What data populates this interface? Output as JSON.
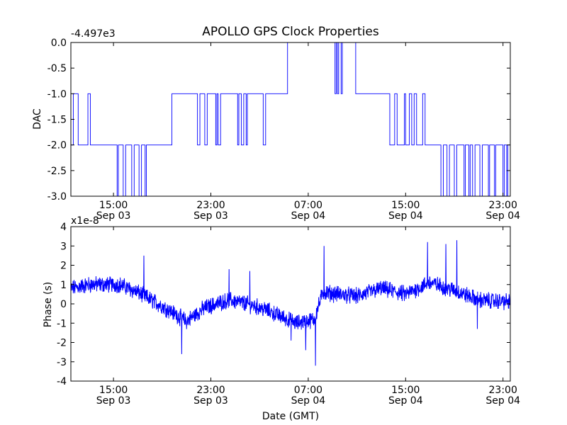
{
  "chart_data": {
    "title": "APOLLO GPS Clock Properties",
    "xlabel": "Date (GMT)",
    "x_tick_labels": [
      {
        "time": "15:00",
        "date": "Sep 03"
      },
      {
        "time": "23:00",
        "date": "Sep 03"
      },
      {
        "time": "07:00",
        "date": "Sep 04"
      },
      {
        "time": "15:00",
        "date": "Sep 04"
      },
      {
        "time": "23:00",
        "date": "Sep 04"
      }
    ],
    "x_tick_hours": [
      15,
      23,
      31,
      39,
      47
    ],
    "xlim_hours": [
      11.5,
      47.6
    ],
    "panels": [
      {
        "type": "line",
        "ylabel": "DAC",
        "offset_label": "-4.497e3",
        "ylim": [
          -3.0,
          0.0
        ],
        "y_tick_labels": [
          "0.0",
          "-0.5",
          "-1.0",
          "-1.5",
          "-2.0",
          "-2.5",
          "-3.0"
        ],
        "y_ticks": [
          0.0,
          -0.5,
          -1.0,
          -1.5,
          -2.0,
          -2.5,
          -3.0
        ],
        "color": "#0000ff",
        "segments": [
          {
            "t": 11.5,
            "v": -2
          },
          {
            "t": 11.7,
            "v": -1
          },
          {
            "t": 12.1,
            "v": -2
          },
          {
            "t": 12.9,
            "v": -1
          },
          {
            "t": 13.1,
            "v": -2
          },
          {
            "t": 15.3,
            "v": -3
          },
          {
            "t": 15.4,
            "v": -2
          },
          {
            "t": 15.8,
            "v": -3
          },
          {
            "t": 16.0,
            "v": -2
          },
          {
            "t": 16.5,
            "v": -3
          },
          {
            "t": 16.7,
            "v": -2
          },
          {
            "t": 17.1,
            "v": -3
          },
          {
            "t": 17.3,
            "v": -2
          },
          {
            "t": 17.6,
            "v": -3
          },
          {
            "t": 17.7,
            "v": -2
          },
          {
            "t": 19.8,
            "v": -1
          },
          {
            "t": 21.9,
            "v": -2
          },
          {
            "t": 22.1,
            "v": -1
          },
          {
            "t": 22.5,
            "v": -2
          },
          {
            "t": 22.7,
            "v": -1
          },
          {
            "t": 23.4,
            "v": -2
          },
          {
            "t": 23.5,
            "v": -1
          },
          {
            "t": 23.6,
            "v": -2
          },
          {
            "t": 23.8,
            "v": -1
          },
          {
            "t": 25.2,
            "v": -2
          },
          {
            "t": 25.3,
            "v": -1
          },
          {
            "t": 25.5,
            "v": -2
          },
          {
            "t": 25.7,
            "v": -1
          },
          {
            "t": 25.9,
            "v": -2
          },
          {
            "t": 26.0,
            "v": -1
          },
          {
            "t": 27.3,
            "v": -2
          },
          {
            "t": 27.5,
            "v": -1
          },
          {
            "t": 29.3,
            "v": 0
          },
          {
            "t": 33.2,
            "v": -1
          },
          {
            "t": 33.3,
            "v": 0
          },
          {
            "t": 33.4,
            "v": -1
          },
          {
            "t": 33.5,
            "v": 0
          },
          {
            "t": 33.7,
            "v": -1
          },
          {
            "t": 33.8,
            "v": 0
          },
          {
            "t": 34.9,
            "v": -1
          },
          {
            "t": 37.7,
            "v": -2
          },
          {
            "t": 38.1,
            "v": -1
          },
          {
            "t": 38.3,
            "v": -2
          },
          {
            "t": 38.9,
            "v": -1
          },
          {
            "t": 39.0,
            "v": -2
          },
          {
            "t": 39.3,
            "v": -1
          },
          {
            "t": 39.5,
            "v": -2
          },
          {
            "t": 39.7,
            "v": -1
          },
          {
            "t": 39.9,
            "v": -2
          },
          {
            "t": 40.4,
            "v": -1
          },
          {
            "t": 40.6,
            "v": -2
          },
          {
            "t": 41.9,
            "v": -3
          },
          {
            "t": 42.1,
            "v": -2
          },
          {
            "t": 42.4,
            "v": -3
          },
          {
            "t": 42.6,
            "v": -2
          },
          {
            "t": 43.0,
            "v": -3
          },
          {
            "t": 43.2,
            "v": -2
          },
          {
            "t": 43.8,
            "v": -3
          },
          {
            "t": 43.9,
            "v": -2
          },
          {
            "t": 44.2,
            "v": -3
          },
          {
            "t": 44.3,
            "v": -2
          },
          {
            "t": 44.5,
            "v": -3
          },
          {
            "t": 44.7,
            "v": -2
          },
          {
            "t": 45.1,
            "v": -3
          },
          {
            "t": 45.3,
            "v": -2
          },
          {
            "t": 45.8,
            "v": -3
          },
          {
            "t": 45.9,
            "v": -2
          },
          {
            "t": 46.3,
            "v": -3
          },
          {
            "t": 46.4,
            "v": -2
          },
          {
            "t": 47.0,
            "v": -3
          },
          {
            "t": 47.1,
            "v": -2
          },
          {
            "t": 47.3,
            "v": -3
          },
          {
            "t": 47.4,
            "v": -2
          },
          {
            "t": 47.6,
            "v": -2
          }
        ]
      },
      {
        "type": "line",
        "ylabel": "Phase (s)",
        "offset_label": "x1e-8",
        "ylim": [
          -4,
          4
        ],
        "y_tick_labels": [
          "4",
          "3",
          "2",
          "1",
          "0",
          "-1",
          "-2",
          "-3",
          "-4"
        ],
        "y_ticks": [
          4,
          3,
          2,
          1,
          0,
          -1,
          -2,
          -3,
          -4
        ],
        "color": "#0000ff",
        "trend_knots": [
          {
            "t": 11.5,
            "v": 0.8
          },
          {
            "t": 13.0,
            "v": 1.0
          },
          {
            "t": 15.5,
            "v": 1.0
          },
          {
            "t": 17.0,
            "v": 0.6
          },
          {
            "t": 19.5,
            "v": -0.3
          },
          {
            "t": 21.0,
            "v": -0.9
          },
          {
            "t": 22.5,
            "v": -0.2
          },
          {
            "t": 24.5,
            "v": 0.2
          },
          {
            "t": 26.0,
            "v": 0.0
          },
          {
            "t": 27.5,
            "v": -0.3
          },
          {
            "t": 30.0,
            "v": -1.0
          },
          {
            "t": 31.5,
            "v": -0.8
          },
          {
            "t": 32.2,
            "v": 0.6
          },
          {
            "t": 33.5,
            "v": 0.5
          },
          {
            "t": 35.0,
            "v": 0.4
          },
          {
            "t": 37.0,
            "v": 0.8
          },
          {
            "t": 39.0,
            "v": 0.5
          },
          {
            "t": 41.0,
            "v": 1.1
          },
          {
            "t": 43.0,
            "v": 0.7
          },
          {
            "t": 45.0,
            "v": 0.2
          },
          {
            "t": 47.6,
            "v": 0.1
          }
        ],
        "noise_amplitude": 0.35,
        "spikes": [
          {
            "t": 17.5,
            "v": 2.5
          },
          {
            "t": 20.6,
            "v": -2.6
          },
          {
            "t": 24.5,
            "v": 1.8
          },
          {
            "t": 30.8,
            "v": -2.4
          },
          {
            "t": 31.6,
            "v": -3.2
          },
          {
            "t": 32.3,
            "v": 3.0
          },
          {
            "t": 40.8,
            "v": 3.2
          },
          {
            "t": 42.3,
            "v": 3.1
          },
          {
            "t": 43.2,
            "v": 3.3
          },
          {
            "t": 44.9,
            "v": -1.3
          },
          {
            "t": 29.6,
            "v": -1.9
          },
          {
            "t": 26.2,
            "v": 1.7
          }
        ]
      }
    ]
  }
}
